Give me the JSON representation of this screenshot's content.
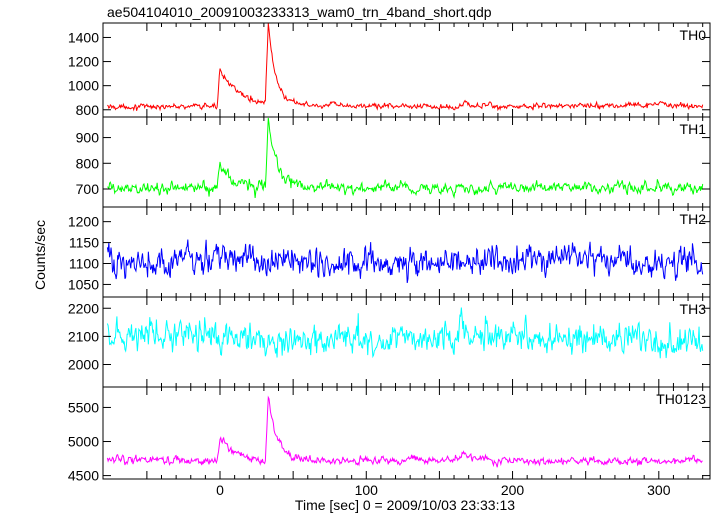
{
  "chart_data": {
    "type": "line",
    "title": "ae504104010_20091003233313_wam0_trn_4band_short.qdp",
    "xlabel": "Time [sec] 0 = 2009/10/03 23:33:13",
    "ylabel": "Counts/sec",
    "xlim": [
      -80,
      335
    ],
    "x_ticks": [
      0,
      100,
      200,
      300
    ],
    "grid": false,
    "panels": [
      {
        "name": "TH0",
        "color": "#ff0000",
        "ylim": [
          740,
          1520
        ],
        "y_ticks": [
          800,
          1000,
          1200,
          1400
        ],
        "baseline": 830,
        "noise": 18,
        "spike": 12,
        "events": [
          {
            "t": 0,
            "peak": 1150,
            "tau": 12
          },
          {
            "t": 33,
            "peak": 1500,
            "tau": 5
          },
          {
            "t": 165,
            "peak": 860,
            "tau": 10
          },
          {
            "t": 220,
            "peak": 845,
            "tau": 8
          },
          {
            "t": 300,
            "peak": 850,
            "tau": 8
          }
        ]
      },
      {
        "name": "TH1",
        "color": "#00ff00",
        "ylim": [
          630,
          980
        ],
        "y_ticks": [
          700,
          800,
          900
        ],
        "baseline": 705,
        "noise": 18,
        "spike": 10,
        "events": [
          {
            "t": 0,
            "peak": 800,
            "tau": 8
          },
          {
            "t": 33,
            "peak": 960,
            "tau": 6
          }
        ]
      },
      {
        "name": "TH2",
        "color": "#0000ff",
        "ylim": [
          1020,
          1235
        ],
        "y_ticks": [
          1050,
          1100,
          1150,
          1200
        ],
        "baseline": 1105,
        "noise": 28,
        "spike": 8,
        "events": []
      },
      {
        "name": "TH3",
        "color": "#00ffff",
        "ylim": [
          1920,
          2240
        ],
        "y_ticks": [
          2000,
          2100,
          2200
        ],
        "baseline": 2095,
        "noise": 45,
        "spike": 10,
        "events": []
      },
      {
        "name": "TH0123",
        "color": "#ff00ff",
        "ylim": [
          4450,
          5800
        ],
        "y_ticks": [
          4500,
          5000,
          5500
        ],
        "baseline": 4720,
        "noise": 45,
        "spike": 10,
        "events": [
          {
            "t": 0,
            "peak": 5100,
            "tau": 10
          },
          {
            "t": 33,
            "peak": 5650,
            "tau": 6
          },
          {
            "t": 165,
            "peak": 4790,
            "tau": 8
          }
        ]
      }
    ]
  }
}
